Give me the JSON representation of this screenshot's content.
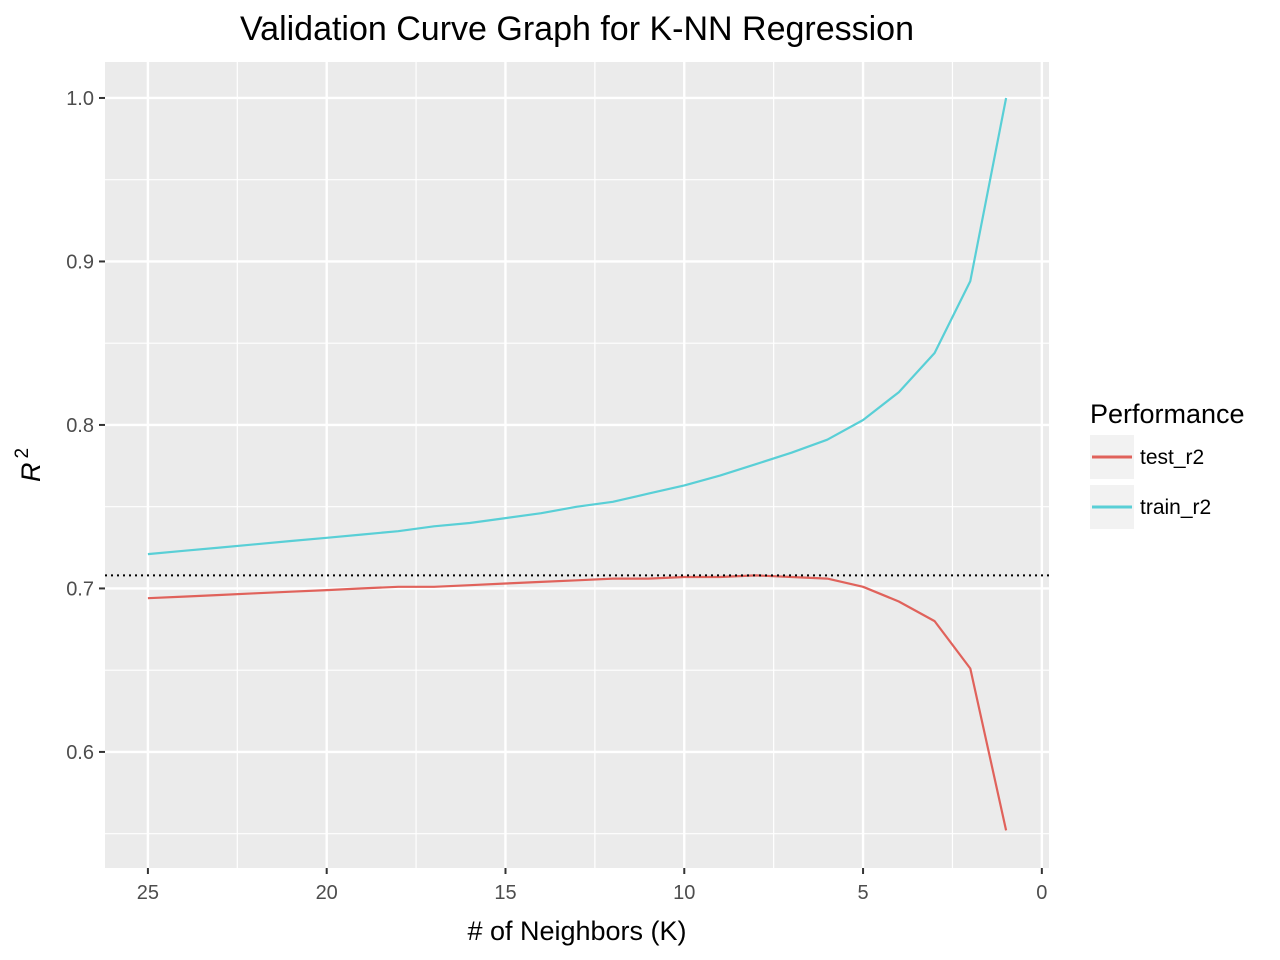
{
  "chart_data": {
    "type": "line",
    "title": "Validation Curve Graph for K-NN Regression",
    "xlabel": "# of Neighbors (K)",
    "ylabel_base": "R",
    "ylabel_sup": "2",
    "xlim": [
      26.2,
      -0.2
    ],
    "ylim": [
      0.529,
      1.022
    ],
    "x_reversed": true,
    "x_ticks": [
      25,
      20,
      15,
      10,
      5,
      0
    ],
    "x_tick_labels": [
      "25",
      "20",
      "15",
      "10",
      "5",
      "0"
    ],
    "y_ticks": [
      0.6,
      0.7,
      0.8,
      0.9,
      1.0
    ],
    "y_tick_labels": [
      "0.6",
      "0.7",
      "0.8",
      "0.9",
      "1.0"
    ],
    "grid": true,
    "reference_line": {
      "y": 0.708,
      "style": "dotted"
    },
    "legend": {
      "title": "Performance",
      "placement": "right",
      "entries": [
        {
          "label": "test_r2",
          "color": "#e0625b"
        },
        {
          "label": "train_r2",
          "color": "#59cfd6"
        }
      ]
    },
    "x": [
      25,
      24,
      23,
      22,
      21,
      20,
      19,
      18,
      17,
      16,
      15,
      14,
      13,
      12,
      11,
      10,
      9,
      8,
      7,
      6,
      5,
      4,
      3,
      2,
      1
    ],
    "series": [
      {
        "name": "test_r2",
        "color": "#e0625b",
        "values": [
          0.694,
          0.695,
          0.696,
          0.697,
          0.698,
          0.699,
          0.7,
          0.701,
          0.701,
          0.702,
          0.703,
          0.704,
          0.705,
          0.706,
          0.706,
          0.707,
          0.707,
          0.708,
          0.707,
          0.706,
          0.701,
          0.692,
          0.68,
          0.651,
          0.552
        ]
      },
      {
        "name": "train_r2",
        "color": "#59cfd6",
        "values": [
          0.721,
          0.723,
          0.725,
          0.727,
          0.729,
          0.731,
          0.733,
          0.735,
          0.738,
          0.74,
          0.743,
          0.746,
          0.75,
          0.753,
          0.758,
          0.763,
          0.769,
          0.776,
          0.783,
          0.791,
          0.803,
          0.82,
          0.844,
          0.888,
          1.0
        ]
      }
    ]
  }
}
